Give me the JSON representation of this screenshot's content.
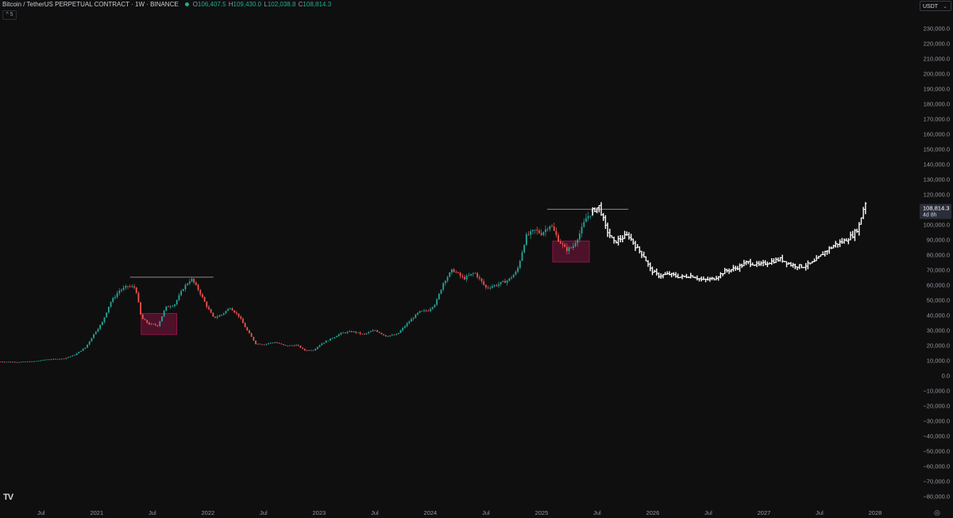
{
  "header": {
    "symbol": "Bitcoin / TetherUS PERPETUAL CONTRACT · 1W · BINANCE",
    "open_label": "O",
    "open": "106,407.5",
    "high_label": "H",
    "high": "109,430.0",
    "low_label": "L",
    "low": "102,038.8",
    "close_label": "C",
    "close": "108,814.3"
  },
  "collapse_label": "^ 5",
  "currency": {
    "label": "USDT",
    "chevron": "⌄"
  },
  "tv_logo": "TV",
  "settings_icon": "◎",
  "price_badge": {
    "price": "108,814.3",
    "countdown": "4d 8h"
  },
  "colors": {
    "up": "#26a69a",
    "down": "#ef5350",
    "projection": "#ffffff",
    "box": "#c2185b",
    "level": "#8a8a8a",
    "bg": "#0f0f0f"
  },
  "chart_data": {
    "type": "candlestick",
    "y_ticks": [
      "230,000.0",
      "220,000.0",
      "210,000.0",
      "200,000.0",
      "190,000.0",
      "180,000.0",
      "170,000.0",
      "160,000.0",
      "150,000.0",
      "140,000.0",
      "130,000.0",
      "120,000.0",
      "110,000.0",
      "100,000.0",
      "90,000.0",
      "80,000.0",
      "70,000.0",
      "60,000.0",
      "50,000.0",
      "40,000.0",
      "30,000.0",
      "20,000.0",
      "10,000.0",
      "0.0",
      "−10,000.0",
      "−20,000.0",
      "−30,000.0",
      "−40,000.0",
      "−50,000.0",
      "−60,000.0",
      "−70,000.0",
      "−80,000.0"
    ],
    "y_tick_values": [
      230000,
      220000,
      210000,
      200000,
      190000,
      180000,
      170000,
      160000,
      150000,
      140000,
      130000,
      120000,
      110000,
      100000,
      90000,
      80000,
      70000,
      60000,
      50000,
      40000,
      30000,
      20000,
      10000,
      0,
      -10000,
      -20000,
      -30000,
      -40000,
      -50000,
      -60000,
      -70000,
      -80000
    ],
    "x_ticks": [
      {
        "label": "Jul",
        "t": 2020.5
      },
      {
        "label": "2021",
        "t": 2021.0
      },
      {
        "label": "Jul",
        "t": 2021.5
      },
      {
        "label": "2022",
        "t": 2022.0
      },
      {
        "label": "Jul",
        "t": 2022.5
      },
      {
        "label": "2023",
        "t": 2023.0
      },
      {
        "label": "Jul",
        "t": 2023.5
      },
      {
        "label": "2024",
        "t": 2024.0
      },
      {
        "label": "Jul",
        "t": 2024.5
      },
      {
        "label": "2025",
        "t": 2025.0
      },
      {
        "label": "Jul",
        "t": 2025.5
      },
      {
        "label": "2026",
        "t": 2026.0
      },
      {
        "label": "Jul",
        "t": 2026.5
      },
      {
        "label": "2027",
        "t": 2027.0
      },
      {
        "label": "Jul",
        "t": 2027.5
      },
      {
        "label": "2028",
        "t": 2028.0
      }
    ],
    "x_range": [
      2020.13,
      2028.4
    ],
    "y_range": [
      -84000,
      236000
    ],
    "series": [
      {
        "name": "history",
        "style": "candles",
        "points": [
          [
            2020.13,
            9000
          ],
          [
            2020.3,
            8800
          ],
          [
            2020.45,
            9300
          ],
          [
            2020.55,
            10500
          ],
          [
            2020.7,
            11000
          ],
          [
            2020.8,
            13500
          ],
          [
            2020.9,
            18500
          ],
          [
            2020.98,
            28000
          ],
          [
            2021.05,
            35000
          ],
          [
            2021.12,
            48000
          ],
          [
            2021.2,
            56000
          ],
          [
            2021.28,
            59000
          ],
          [
            2021.35,
            58000
          ],
          [
            2021.4,
            38000
          ],
          [
            2021.47,
            34000
          ],
          [
            2021.55,
            33000
          ],
          [
            2021.62,
            45000
          ],
          [
            2021.7,
            47000
          ],
          [
            2021.78,
            58000
          ],
          [
            2021.85,
            64000
          ],
          [
            2021.92,
            56000
          ],
          [
            2021.98,
            47000
          ],
          [
            2022.05,
            38000
          ],
          [
            2022.12,
            40000
          ],
          [
            2022.2,
            45000
          ],
          [
            2022.28,
            39000
          ],
          [
            2022.35,
            30000
          ],
          [
            2022.43,
            21000
          ],
          [
            2022.5,
            20500
          ],
          [
            2022.6,
            22000
          ],
          [
            2022.7,
            19500
          ],
          [
            2022.8,
            20000
          ],
          [
            2022.87,
            16500
          ],
          [
            2022.95,
            16800
          ],
          [
            2023.02,
            21000
          ],
          [
            2023.1,
            24000
          ],
          [
            2023.2,
            28000
          ],
          [
            2023.3,
            29000
          ],
          [
            2023.4,
            27000
          ],
          [
            2023.5,
            30000
          ],
          [
            2023.6,
            26000
          ],
          [
            2023.7,
            27000
          ],
          [
            2023.8,
            35000
          ],
          [
            2023.9,
            42000
          ],
          [
            2023.98,
            43000
          ],
          [
            2024.05,
            48000
          ],
          [
            2024.12,
            62000
          ],
          [
            2024.2,
            70000
          ],
          [
            2024.3,
            64000
          ],
          [
            2024.4,
            68000
          ],
          [
            2024.5,
            58000
          ],
          [
            2024.6,
            60000
          ],
          [
            2024.7,
            63000
          ],
          [
            2024.78,
            69000
          ],
          [
            2024.86,
            92000
          ],
          [
            2024.94,
            96000
          ],
          [
            2025.0,
            94000
          ],
          [
            2025.08,
            100000
          ],
          [
            2025.15,
            90000
          ],
          [
            2025.22,
            83000
          ],
          [
            2025.28,
            85000
          ],
          [
            2025.35,
            95000
          ],
          [
            2025.4,
            104000
          ],
          [
            2025.46,
            108814
          ]
        ]
      },
      {
        "name": "projection",
        "style": "bars",
        "points": [
          [
            2025.46,
            109000
          ],
          [
            2025.52,
            112000
          ],
          [
            2025.58,
            97000
          ],
          [
            2025.65,
            88000
          ],
          [
            2025.72,
            91000
          ],
          [
            2025.78,
            93000
          ],
          [
            2025.85,
            85000
          ],
          [
            2025.92,
            79000
          ],
          [
            2025.98,
            70000
          ],
          [
            2026.05,
            66000
          ],
          [
            2026.15,
            67000
          ],
          [
            2026.25,
            65000
          ],
          [
            2026.35,
            66000
          ],
          [
            2026.45,
            63000
          ],
          [
            2026.55,
            64000
          ],
          [
            2026.65,
            69000
          ],
          [
            2026.75,
            71000
          ],
          [
            2026.85,
            75000
          ],
          [
            2026.95,
            73000
          ],
          [
            2027.05,
            75000
          ],
          [
            2027.15,
            77000
          ],
          [
            2027.25,
            73000
          ],
          [
            2027.35,
            72000
          ],
          [
            2027.45,
            75000
          ],
          [
            2027.55,
            82000
          ],
          [
            2027.65,
            87000
          ],
          [
            2027.72,
            89000
          ],
          [
            2027.8,
            93000
          ],
          [
            2027.85,
            98000
          ],
          [
            2027.9,
            112000
          ],
          [
            2027.93,
            118000
          ]
        ]
      }
    ],
    "annotations": [
      {
        "type": "level",
        "x0": 2021.3,
        "x1": 2022.05,
        "y": 65000
      },
      {
        "type": "level",
        "x0": 2025.05,
        "x1": 2025.78,
        "y": 110000
      },
      {
        "type": "box",
        "x0": 2021.4,
        "x1": 2021.72,
        "y0": 27000,
        "y1": 41000
      },
      {
        "type": "box",
        "x0": 2025.1,
        "x1": 2025.43,
        "y0": 75000,
        "y1": 89000
      }
    ]
  }
}
